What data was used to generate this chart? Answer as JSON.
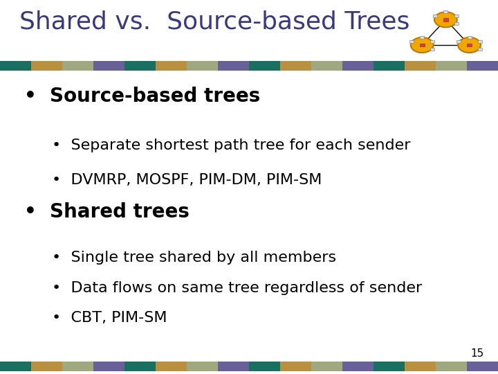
{
  "title": "Shared vs.  Source-based Trees",
  "title_color": "#3a3a7a",
  "title_fontsize": 26,
  "background_color": "#ffffff",
  "bullet1": "Source-based trees",
  "sub1a": "Separate shortest path tree for each sender",
  "sub1b": "DVMRP, MOSPF, PIM-DM, PIM-SM",
  "bullet2": "Shared trees",
  "sub2a": "Single tree shared by all members",
  "sub2b": "Data flows on same tree regardless of sender",
  "sub2c": "CBT, PIM-SM",
  "page_number": "15",
  "stripe_colors": [
    "#1a7060",
    "#b89040",
    "#a0a880",
    "#686098",
    "#1a7060",
    "#b89040",
    "#a0a880",
    "#686098",
    "#1a7060",
    "#b89040",
    "#a0a880",
    "#686098",
    "#1a7060",
    "#b89040",
    "#a0a880",
    "#686098"
  ],
  "bullet_color": "#000000",
  "text_color": "#000000",
  "bullet_fontsize": 20,
  "sub_fontsize": 16
}
